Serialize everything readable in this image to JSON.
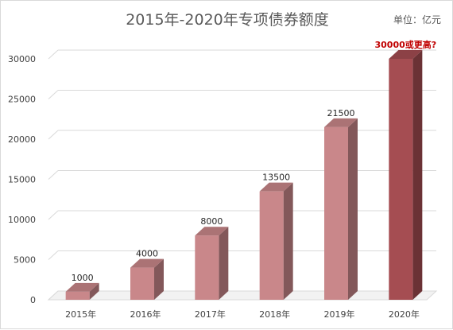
{
  "chart_data": {
    "type": "bar",
    "title": "2015年-2020年专项债券额度",
    "unit_note": "单位：亿元",
    "categories": [
      "2015年",
      "2016年",
      "2017年",
      "2018年",
      "2019年",
      "2020年"
    ],
    "values": [
      1000,
      4000,
      8000,
      13500,
      21500,
      30000
    ],
    "data_labels": [
      "1000",
      "4000",
      "8000",
      "13500",
      "21500",
      "30000或更高?"
    ],
    "y_ticks": [
      0,
      5000,
      10000,
      15000,
      20000,
      25000,
      30000
    ],
    "ylim": [
      0,
      30000
    ],
    "grid": true,
    "legend": false,
    "style": "3d-column",
    "colors": {
      "bar": "#c9878a",
      "bar_highlight": "#a54d52",
      "highlight_label": "#c00000",
      "text": "#404040",
      "grid": "#d9d9d9"
    }
  }
}
